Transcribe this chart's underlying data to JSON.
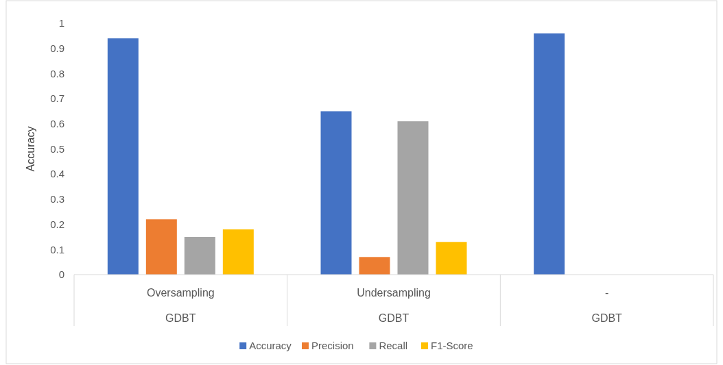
{
  "chart_data": {
    "type": "bar",
    "ylabel": "Accuracy",
    "categories": [
      "Oversampling\nGDBT",
      "Undersampling\nGDBT",
      "-\nGDBT"
    ],
    "series": [
      {
        "name": "Accuracy",
        "color": "#4472c4",
        "values": [
          0.94,
          0.65,
          0.96
        ]
      },
      {
        "name": "Precision",
        "color": "#ed7d31",
        "values": [
          0.22,
          0.07,
          null
        ]
      },
      {
        "name": "Recall",
        "color": "#a5a5a5",
        "values": [
          0.15,
          0.61,
          null
        ]
      },
      {
        "name": "F1-Score",
        "color": "#ffc000",
        "values": [
          0.18,
          0.13,
          null
        ]
      }
    ],
    "ylim": [
      0,
      1
    ],
    "yticks": [
      0,
      0.1,
      0.2,
      0.3,
      0.4,
      0.5,
      0.6,
      0.7,
      0.8,
      0.9,
      1
    ],
    "grid": false,
    "legend": "bottom"
  }
}
